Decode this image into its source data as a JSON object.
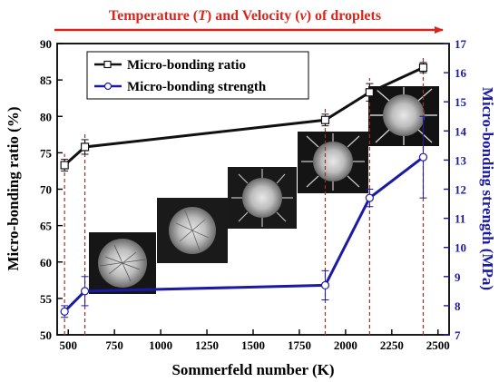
{
  "banner": {
    "text_pre": "Temperature (",
    "text_t": "T",
    "text_mid": ") and Velocity (",
    "text_v": "v",
    "text_post": ") of droplets",
    "color": "#d9261c"
  },
  "chart_data": {
    "type": "line",
    "xlabel": "Sommerfeld number (K)",
    "ylabel_left": "Micro-bonding ratio (%)",
    "ylabel_right": "Micro-bonding strength (MPa)",
    "xlim": [
      440,
      2560
    ],
    "ylim_left": [
      50,
      90
    ],
    "ylim_right": [
      7,
      17
    ],
    "xticks": [
      500,
      750,
      1000,
      1250,
      1500,
      1750,
      2000,
      2250,
      2500
    ],
    "yticks_left": [
      50,
      55,
      60,
      65,
      70,
      75,
      80,
      85,
      90
    ],
    "yticks_right": [
      7,
      8,
      9,
      10,
      11,
      12,
      13,
      14,
      15,
      16,
      17
    ],
    "x": [
      480,
      590,
      1890,
      2130,
      2420
    ],
    "series": [
      {
        "name": "Micro-bonding ratio",
        "axis": "left",
        "color": "#111111",
        "marker": "square",
        "values": [
          73.3,
          75.8,
          79.5,
          83.3,
          86.7
        ],
        "err": [
          0.8,
          1.0,
          0.8,
          1.2,
          0.7
        ]
      },
      {
        "name": "Micro-bonding strength",
        "axis": "right",
        "color": "#1a1aa6",
        "marker": "circle",
        "values": [
          7.8,
          8.5,
          8.7,
          11.7,
          13.1
        ],
        "err": [
          0.2,
          0.5,
          0.5,
          0.3,
          1.4
        ]
      }
    ],
    "legend": "top-left",
    "vlines_color": "#a0302a"
  }
}
